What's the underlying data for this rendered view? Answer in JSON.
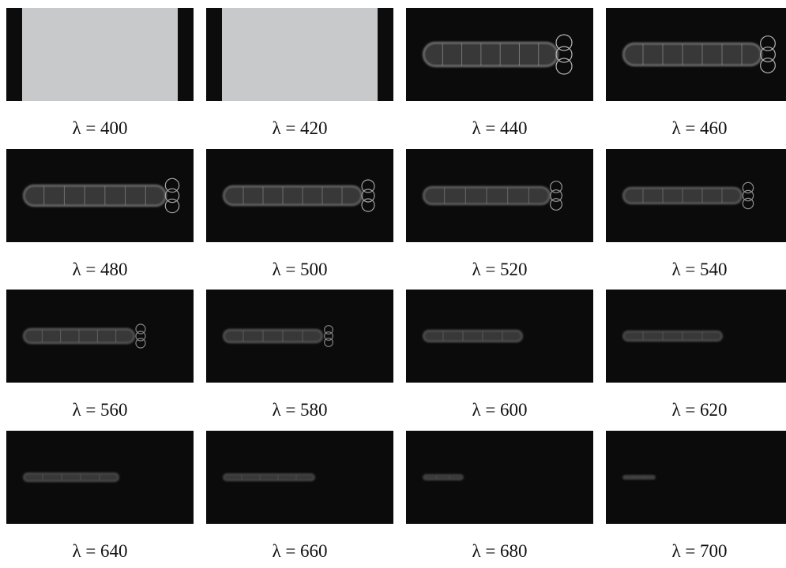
{
  "panels": [
    {
      "caption": "λ = 400"
    },
    {
      "caption": "λ = 420"
    },
    {
      "caption": "λ = 440"
    },
    {
      "caption": "λ = 460"
    },
    {
      "caption": "λ = 480"
    },
    {
      "caption": "λ = 500"
    },
    {
      "caption": "λ = 520"
    },
    {
      "caption": "λ = 540"
    },
    {
      "caption": "λ = 560"
    },
    {
      "caption": "λ = 580"
    },
    {
      "caption": "λ = 600"
    },
    {
      "caption": "λ = 620"
    },
    {
      "caption": "λ = 640"
    },
    {
      "caption": "λ = 660"
    },
    {
      "caption": "λ = 680"
    },
    {
      "caption": "λ = 700"
    }
  ]
}
